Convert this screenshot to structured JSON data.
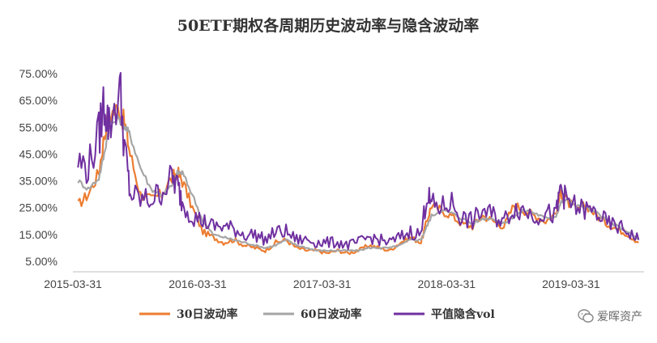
{
  "chart_data": {
    "type": "line",
    "title": "50ETF期权各周期历史波动率与隐含波动率",
    "y_ticks": [
      "75.00%",
      "65.00%",
      "55.00%",
      "45.00%",
      "35.00%",
      "25.00%",
      "15.00%",
      "5.00%"
    ],
    "x_ticks": [
      "2015-03-31",
      "2016-03-31",
      "2017-03-31",
      "2018-03-31",
      "2019-03-31"
    ],
    "ylim": [
      0.05,
      0.8
    ],
    "xlim": [
      "2015-03-31",
      "2019-10-31"
    ],
    "grid": false,
    "legend_position": "bottom",
    "x": [
      "2015-04-15",
      "2015-05-15",
      "2015-06-15",
      "2015-07-01",
      "2015-07-15",
      "2015-08-15",
      "2015-09-01",
      "2015-09-15",
      "2015-10-15",
      "2015-11-15",
      "2015-12-15",
      "2016-01-15",
      "2016-02-01",
      "2016-02-15",
      "2016-03-15",
      "2016-04-15",
      "2016-05-15",
      "2016-06-15",
      "2016-07-15",
      "2016-08-15",
      "2016-09-15",
      "2016-10-15",
      "2016-11-15",
      "2016-12-15",
      "2017-01-15",
      "2017-02-15",
      "2017-03-15",
      "2017-04-15",
      "2017-05-15",
      "2017-06-15",
      "2017-07-15",
      "2017-08-15",
      "2017-09-15",
      "2017-10-15",
      "2017-11-15",
      "2017-12-15",
      "2018-01-15",
      "2018-02-01",
      "2018-02-15",
      "2018-03-15",
      "2018-04-15",
      "2018-05-15",
      "2018-06-15",
      "2018-07-15",
      "2018-08-15",
      "2018-09-15",
      "2018-10-15",
      "2018-11-15",
      "2018-12-15",
      "2019-01-15",
      "2019-02-15",
      "2019-03-01",
      "2019-03-15",
      "2019-04-15",
      "2019-05-15",
      "2019-06-15",
      "2019-07-15",
      "2019-08-15",
      "2019-09-15",
      "2019-10-15"
    ],
    "series": [
      {
        "name": "30日波动率",
        "color": "#ED7D31",
        "values": [
          0.26,
          0.3,
          0.38,
          0.52,
          0.6,
          0.62,
          0.55,
          0.45,
          0.3,
          0.28,
          0.3,
          0.36,
          0.38,
          0.35,
          0.25,
          0.16,
          0.14,
          0.12,
          0.13,
          0.11,
          0.1,
          0.09,
          0.12,
          0.13,
          0.1,
          0.09,
          0.09,
          0.08,
          0.09,
          0.08,
          0.09,
          0.11,
          0.1,
          0.09,
          0.12,
          0.14,
          0.12,
          0.2,
          0.26,
          0.24,
          0.22,
          0.19,
          0.18,
          0.22,
          0.2,
          0.18,
          0.26,
          0.24,
          0.22,
          0.2,
          0.23,
          0.31,
          0.28,
          0.24,
          0.26,
          0.22,
          0.19,
          0.17,
          0.15,
          0.12
        ]
      },
      {
        "name": "60日波动率",
        "color": "#A5A5A5",
        "values": [
          0.35,
          0.32,
          0.36,
          0.45,
          0.56,
          0.58,
          0.55,
          0.52,
          0.4,
          0.32,
          0.3,
          0.33,
          0.38,
          0.38,
          0.3,
          0.2,
          0.15,
          0.14,
          0.13,
          0.12,
          0.11,
          0.1,
          0.11,
          0.13,
          0.11,
          0.1,
          0.09,
          0.09,
          0.09,
          0.09,
          0.09,
          0.1,
          0.1,
          0.1,
          0.11,
          0.13,
          0.13,
          0.18,
          0.22,
          0.24,
          0.23,
          0.21,
          0.19,
          0.21,
          0.21,
          0.19,
          0.22,
          0.24,
          0.23,
          0.21,
          0.22,
          0.27,
          0.28,
          0.26,
          0.25,
          0.23,
          0.2,
          0.18,
          0.16,
          0.13
        ]
      },
      {
        "name": "平值隐含vol",
        "color": "#7030A0",
        "values": [
          0.42,
          0.4,
          0.52,
          0.65,
          0.55,
          0.7,
          0.45,
          0.3,
          0.28,
          0.28,
          0.31,
          0.36,
          0.33,
          0.27,
          0.22,
          0.2,
          0.18,
          0.18,
          0.17,
          0.15,
          0.15,
          0.13,
          0.16,
          0.16,
          0.13,
          0.13,
          0.12,
          0.12,
          0.12,
          0.11,
          0.12,
          0.14,
          0.13,
          0.12,
          0.14,
          0.16,
          0.15,
          0.3,
          0.26,
          0.25,
          0.27,
          0.21,
          0.2,
          0.24,
          0.22,
          0.2,
          0.25,
          0.24,
          0.22,
          0.23,
          0.22,
          0.33,
          0.28,
          0.25,
          0.24,
          0.23,
          0.19,
          0.18,
          0.16,
          0.13
        ]
      }
    ]
  },
  "watermark": {
    "text": "爱晖资产",
    "icon": "wechat-icon"
  }
}
